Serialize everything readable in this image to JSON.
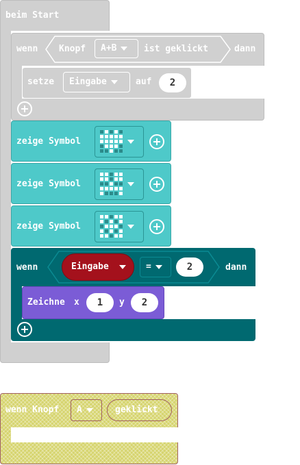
{
  "on_start": {
    "label": "beim Start"
  },
  "button_event": {
    "prefix": "wenn",
    "knopf_label": "Knopf",
    "button_value": "A+B",
    "suffix": "ist geklickt",
    "then_label": "dann"
  },
  "set_block": {
    "label": "setze",
    "variable": "Eingabe",
    "to_label": "auf",
    "value": "2"
  },
  "show_icons": [
    {
      "label": "zeige Symbol",
      "pattern": [
        0,
        1,
        0,
        1,
        0,
        1,
        1,
        1,
        1,
        1,
        1,
        1,
        1,
        1,
        1,
        0,
        1,
        1,
        1,
        0,
        0,
        0,
        1,
        0,
        0
      ]
    },
    {
      "label": "zeige Symbol",
      "pattern": [
        1,
        1,
        0,
        1,
        1,
        1,
        1,
        0,
        1,
        1,
        0,
        0,
        1,
        0,
        0,
        1,
        1,
        1,
        1,
        1,
        1,
        0,
        0,
        0,
        1
      ]
    },
    {
      "label": "zeige Symbol",
      "pattern": [
        1,
        1,
        0,
        1,
        1,
        1,
        0,
        1,
        0,
        1,
        0,
        1,
        1,
        1,
        0,
        1,
        0,
        1,
        0,
        1,
        1,
        1,
        0,
        1,
        1
      ]
    }
  ],
  "if_block": {
    "prefix": "wenn",
    "variable": "Eingabe",
    "operator": "=",
    "value": "2",
    "then_label": "dann"
  },
  "draw_block": {
    "label": "Zeichne",
    "x_label": "x",
    "x_value": "1",
    "y_label": "y",
    "y_value": "2"
  },
  "disabled_event": {
    "prefix": "wenn Knopf",
    "button_value": "A",
    "suffix": "geklickt"
  },
  "colors": {
    "disabled_gray": "#d0d0d0",
    "teal_light": "#4ec9c9",
    "teal_dark": "#006970",
    "purple": "#7b5cd6",
    "variable_red": "#a4111c",
    "disabled_yellow": "#d6d46e"
  }
}
